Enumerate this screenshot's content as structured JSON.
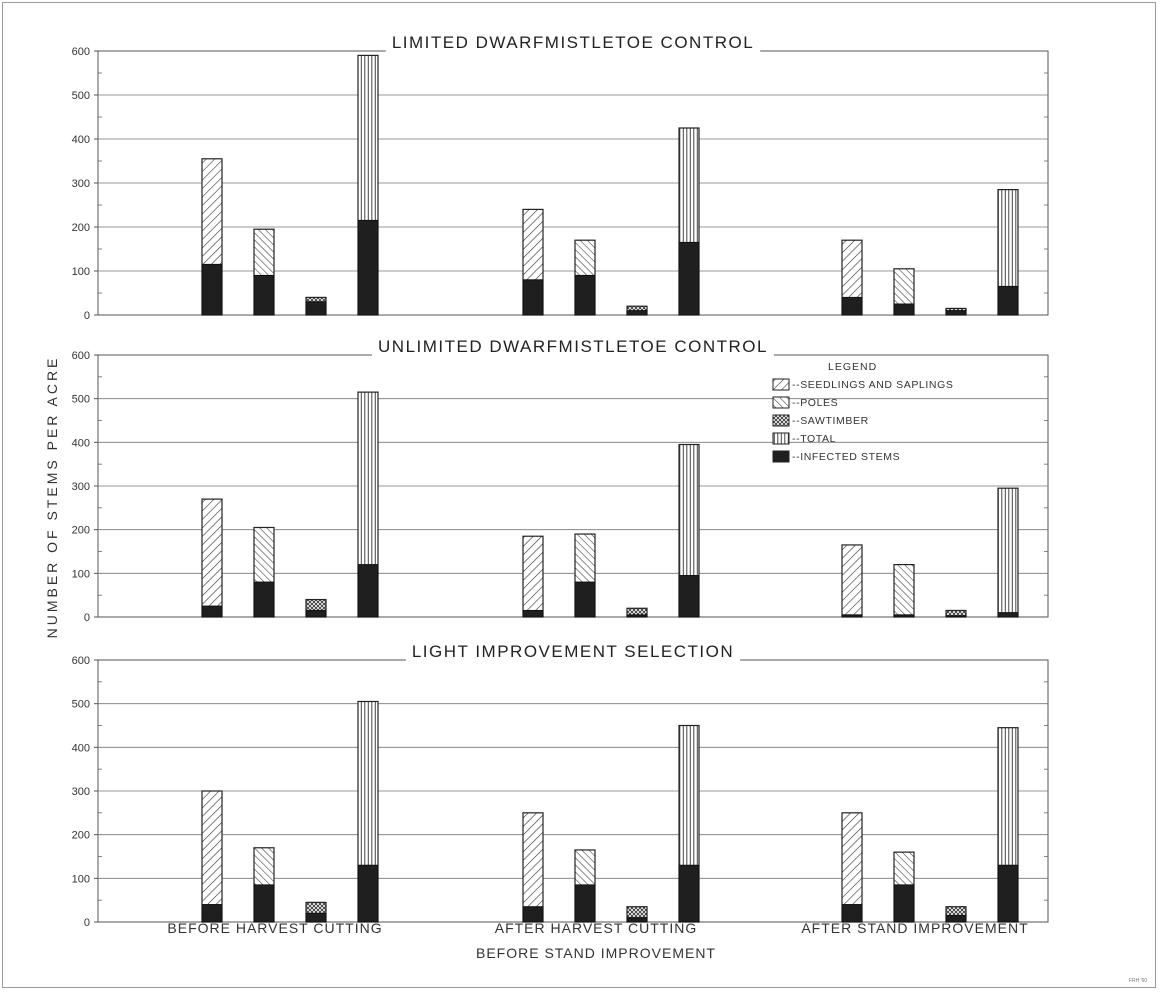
{
  "ylabel": "NUMBER OF STEMS PER ACRE",
  "corner_mark": "FRH '60",
  "legend": {
    "title": "LEGEND",
    "entries": [
      {
        "key": "seedlings",
        "label": "--SEEDLINGS AND SAPLINGS"
      },
      {
        "key": "poles",
        "label": "--POLES"
      },
      {
        "key": "sawtimber",
        "label": "--SAWTIMBER"
      },
      {
        "key": "total",
        "label": "--TOTAL"
      },
      {
        "key": "infected",
        "label": "--INFECTED STEMS"
      }
    ]
  },
  "chart_data": [
    {
      "type": "bar",
      "title": "LIMITED DWARFMISTLETOE CONTROL",
      "ylabel": "NUMBER OF STEMS PER ACRE",
      "ylim": [
        0,
        600
      ],
      "yticks": [
        0,
        100,
        200,
        300,
        400,
        500,
        600
      ],
      "categories": [
        {
          "label": "BEFORE HARVEST CUTTING",
          "values": [
            355,
            195,
            40,
            590
          ],
          "infected": [
            115,
            90,
            30,
            215
          ]
        },
        {
          "label": "AFTER HARVEST CUTTING BEFORE STAND IMPROVEMENT",
          "values": [
            240,
            170,
            20,
            425
          ],
          "infected": [
            80,
            90,
            10,
            165
          ]
        },
        {
          "label": "AFTER STAND IMPROVEMENT",
          "values": [
            170,
            105,
            15,
            285
          ],
          "infected": [
            40,
            25,
            10,
            65
          ]
        }
      ],
      "bar_types": [
        "seedlings",
        "poles",
        "sawtimber",
        "total"
      ]
    },
    {
      "type": "bar",
      "title": "UNLIMITED DWARFMISTLETOE CONTROL",
      "ylabel": "NUMBER OF STEMS PER ACRE",
      "ylim": [
        0,
        600
      ],
      "yticks": [
        0,
        100,
        200,
        300,
        400,
        500,
        600
      ],
      "categories": [
        {
          "label": "BEFORE HARVEST CUTTING",
          "values": [
            270,
            205,
            40,
            515
          ],
          "infected": [
            25,
            80,
            15,
            120
          ]
        },
        {
          "label": "AFTER HARVEST CUTTING BEFORE STAND IMPROVEMENT",
          "values": [
            185,
            190,
            20,
            395
          ],
          "infected": [
            15,
            80,
            5,
            95
          ]
        },
        {
          "label": "AFTER STAND IMPROVEMENT",
          "values": [
            165,
            120,
            15,
            295
          ],
          "infected": [
            5,
            5,
            3,
            10
          ]
        }
      ],
      "bar_types": [
        "seedlings",
        "poles",
        "sawtimber",
        "total"
      ]
    },
    {
      "type": "bar",
      "title": "LIGHT IMPROVEMENT SELECTION",
      "ylabel": "NUMBER OF STEMS PER ACRE",
      "ylim": [
        0,
        600
      ],
      "yticks": [
        0,
        100,
        200,
        300,
        400,
        500,
        600
      ],
      "categories": [
        {
          "label": "BEFORE HARVEST CUTTING",
          "values": [
            300,
            170,
            45,
            505
          ],
          "infected": [
            40,
            85,
            20,
            130
          ]
        },
        {
          "label": "AFTER HARVEST CUTTING BEFORE STAND IMPROVEMENT",
          "values": [
            250,
            165,
            35,
            450
          ],
          "infected": [
            35,
            85,
            10,
            130
          ]
        },
        {
          "label": "AFTER STAND IMPROVEMENT",
          "values": [
            250,
            160,
            35,
            445
          ],
          "infected": [
            40,
            85,
            15,
            130
          ]
        }
      ],
      "bar_types": [
        "seedlings",
        "poles",
        "sawtimber",
        "total"
      ]
    }
  ],
  "x_labels": [
    {
      "line1": "BEFORE HARVEST CUTTING",
      "line2": ""
    },
    {
      "line1": "AFTER HARVEST CUTTING",
      "line2": "BEFORE STAND IMPROVEMENT"
    },
    {
      "line1": "AFTER STAND IMPROVEMENT",
      "line2": ""
    }
  ]
}
